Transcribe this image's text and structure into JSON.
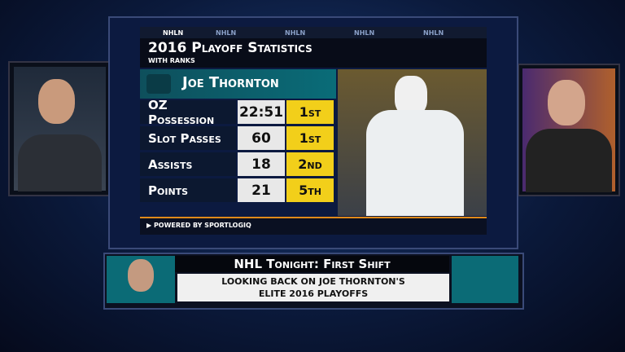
{
  "tabs": [
    "NHLN",
    "NHLN",
    "NHLN",
    "NHLN",
    "NHLN"
  ],
  "stats": {
    "title": "2016 Playoff Statistics",
    "subtitle": "WITH RANKS",
    "player": "Joe Thornton",
    "rows": [
      [
        "OZ Possession",
        "22:51",
        "1st"
      ],
      [
        "Slot Passes",
        "60",
        "1st"
      ],
      [
        "Assists",
        "18",
        "2nd"
      ],
      [
        "Points",
        "21",
        "5th"
      ]
    ],
    "footer": "Powered by Sportlogiq"
  },
  "lower_third": {
    "title": "NHL Tonight: First Shift",
    "lines": [
      "Looking back on Joe Thornton's",
      "elite 2016 playoffs"
    ]
  }
}
